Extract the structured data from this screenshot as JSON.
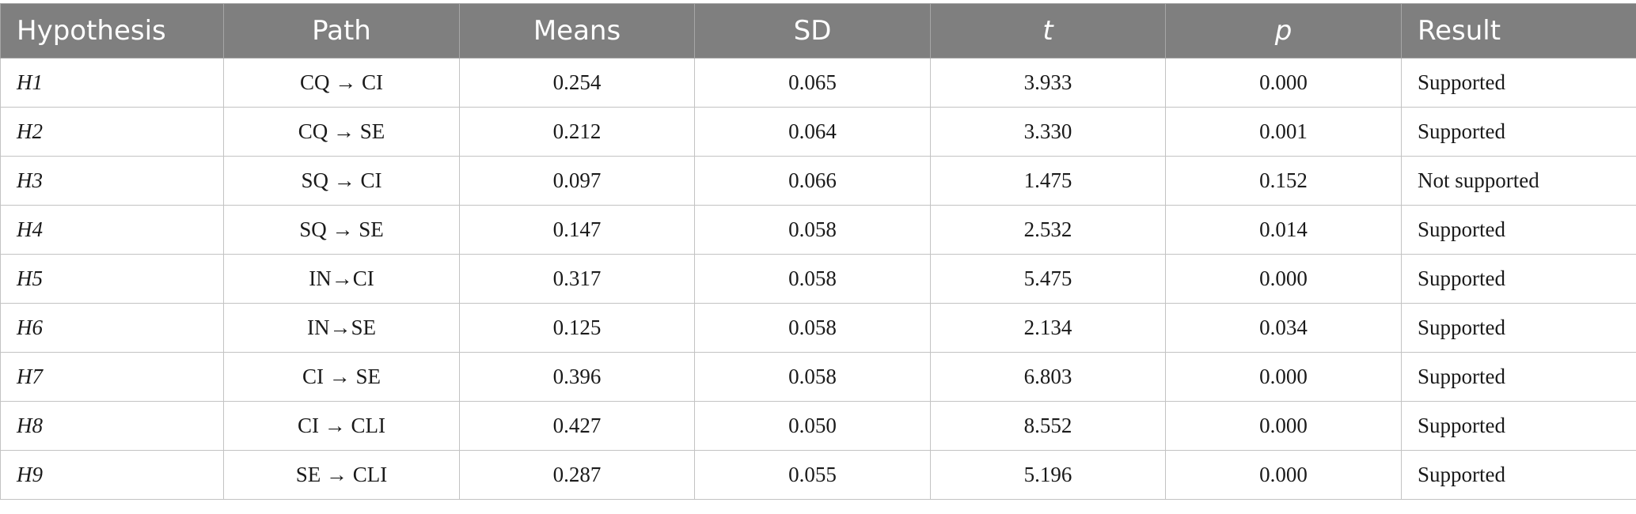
{
  "table": {
    "headers": [
      "Hypothesis",
      "Path",
      "Means",
      "SD",
      "t",
      "p",
      "Result"
    ],
    "rows": [
      {
        "hypothesis": "H1",
        "path": "CQ → CI",
        "means": "0.254",
        "sd": "0.065",
        "t": "3.933",
        "p": "0.000",
        "result": "Supported"
      },
      {
        "hypothesis": "H2",
        "path": "CQ → SE",
        "means": "0.212",
        "sd": "0.064",
        "t": "3.330",
        "p": "0.001",
        "result": "Supported"
      },
      {
        "hypothesis": "H3",
        "path": "SQ → CI",
        "means": "0.097",
        "sd": "0.066",
        "t": "1.475",
        "p": "0.152",
        "result": "Not supported"
      },
      {
        "hypothesis": "H4",
        "path": "SQ → SE",
        "means": "0.147",
        "sd": "0.058",
        "t": "2.532",
        "p": "0.014",
        "result": "Supported"
      },
      {
        "hypothesis": "H5",
        "path": "IN→CI",
        "means": "0.317",
        "sd": "0.058",
        "t": "5.475",
        "p": "0.000",
        "result": "Supported"
      },
      {
        "hypothesis": "H6",
        "path": "IN→SE",
        "means": "0.125",
        "sd": "0.058",
        "t": "2.134",
        "p": "0.034",
        "result": "Supported"
      },
      {
        "hypothesis": "H7",
        "path": "CI → SE",
        "means": "0.396",
        "sd": "0.058",
        "t": "6.803",
        "p": "0.000",
        "result": "Supported"
      },
      {
        "hypothesis": "H8",
        "path": "CI → CLI",
        "means": "0.427",
        "sd": "0.050",
        "t": "8.552",
        "p": "0.000",
        "result": "Supported"
      },
      {
        "hypothesis": "H9",
        "path": "SE → CLI",
        "means": "0.287",
        "sd": "0.055",
        "t": "5.196",
        "p": "0.000",
        "result": "Supported"
      }
    ]
  },
  "colors": {
    "header_background": "#7f7f7f",
    "header_text": "#ffffff",
    "border": "#c3c3c3"
  }
}
